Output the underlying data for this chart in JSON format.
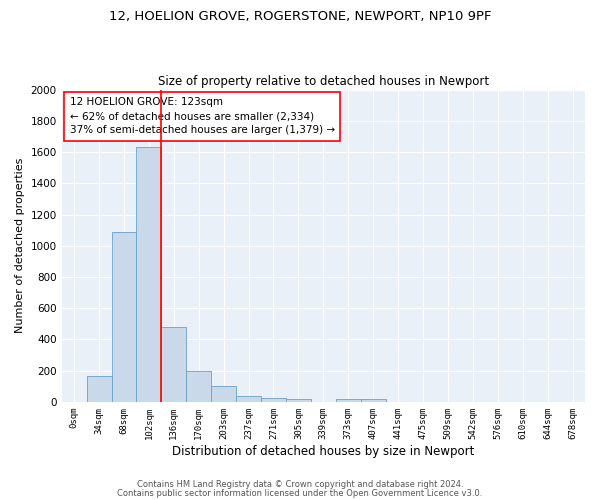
{
  "title1": "12, HOELION GROVE, ROGERSTONE, NEWPORT, NP10 9PF",
  "title2": "Size of property relative to detached houses in Newport",
  "xlabel": "Distribution of detached houses by size in Newport",
  "ylabel": "Number of detached properties",
  "bar_color": "#c9d9ea",
  "bar_edge_color": "#6aa0cc",
  "background_color": "#eaf0f8",
  "grid_color": "white",
  "categories": [
    "0sqm",
    "34sqm",
    "68sqm",
    "102sqm",
    "136sqm",
    "170sqm",
    "203sqm",
    "237sqm",
    "271sqm",
    "305sqm",
    "339sqm",
    "373sqm",
    "407sqm",
    "441sqm",
    "475sqm",
    "509sqm",
    "542sqm",
    "576sqm",
    "610sqm",
    "644sqm",
    "678sqm"
  ],
  "values": [
    0,
    165,
    1090,
    1630,
    480,
    200,
    100,
    40,
    25,
    20,
    0,
    15,
    20,
    0,
    0,
    0,
    0,
    0,
    0,
    0,
    0
  ],
  "ylim": [
    0,
    2000
  ],
  "yticks": [
    0,
    200,
    400,
    600,
    800,
    1000,
    1200,
    1400,
    1600,
    1800,
    2000
  ],
  "red_line_x": 3.5,
  "annotation_text": "12 HOELION GROVE: 123sqm\n← 62% of detached houses are smaller (2,334)\n37% of semi-detached houses are larger (1,379) →",
  "footnote1": "Contains HM Land Registry data © Crown copyright and database right 2024.",
  "footnote2": "Contains public sector information licensed under the Open Government Licence v3.0."
}
